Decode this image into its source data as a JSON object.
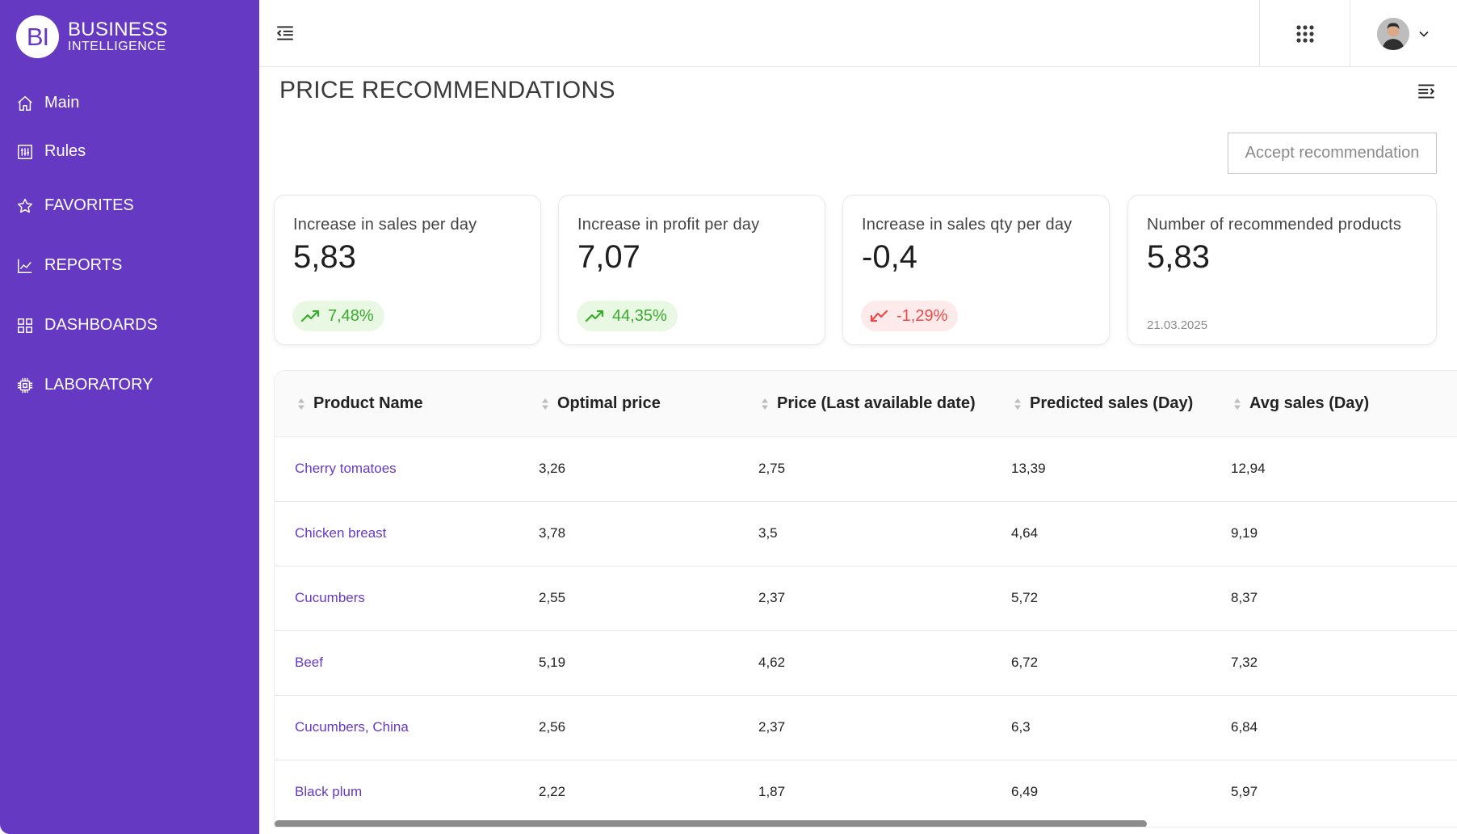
{
  "brand": {
    "logo": "BI",
    "line1": "BUSINESS",
    "line2": "INTELLIGENCE"
  },
  "sidebar": {
    "items": [
      {
        "label": "Main",
        "icon": "home-icon"
      },
      {
        "label": "Rules",
        "icon": "rules-icon"
      },
      {
        "label": "FAVORITES",
        "icon": "star-icon"
      },
      {
        "label": "REPORTS",
        "icon": "line-chart-icon"
      },
      {
        "label": "DASHBOARDS",
        "icon": "grid-icon"
      },
      {
        "label": "LABORATORY",
        "icon": "chip-icon"
      }
    ]
  },
  "page": {
    "title": "PRICE RECOMMENDATIONS",
    "accept_label": "Accept recommendation"
  },
  "cards": [
    {
      "label": "Increase in sales per day",
      "value": "5,83",
      "badge": "7,48%",
      "trend": "up"
    },
    {
      "label": "Increase in profit per day",
      "value": "7,07",
      "badge": "44,35%",
      "trend": "up"
    },
    {
      "label": "Increase in sales qty per day",
      "value": "-0,4",
      "badge": "-1,29%",
      "trend": "down"
    },
    {
      "label": "Number of recommended products",
      "value": "5,83",
      "date": "21.03.2025"
    }
  ],
  "table": {
    "columns": [
      "Product Name",
      "Optimal price",
      "Price (Last available date)",
      "Predicted sales (Day)",
      "Avg sales (Day)"
    ],
    "rows": [
      [
        "Cherry tomatoes",
        "3,26",
        "2,75",
        "13,39",
        "12,94"
      ],
      [
        "Chicken breast",
        "3,78",
        "3,5",
        "4,64",
        "9,19"
      ],
      [
        "Cucumbers",
        "2,55",
        "2,37",
        "5,72",
        "8,37"
      ],
      [
        "Beef",
        "5,19",
        "4,62",
        "6,72",
        "7,32"
      ],
      [
        "Cucumbers, China",
        "2,56",
        "2,37",
        "6,3",
        "6,84"
      ],
      [
        "Black plum",
        "2,22",
        "1,87",
        "6,49",
        "5,97"
      ]
    ]
  },
  "colors": {
    "brand": "#6639c3",
    "positive": "#3aaa2e",
    "negative": "#ec4b4b"
  }
}
